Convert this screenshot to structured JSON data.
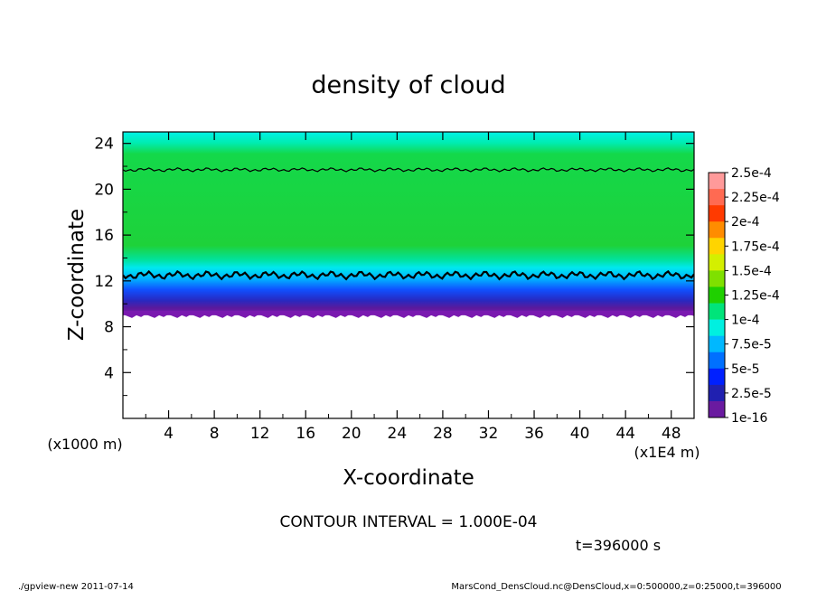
{
  "chart_data": {
    "type": "heatmap",
    "title": "density of cloud",
    "xlabel": "X-coordinate",
    "ylabel": "Z-coordinate",
    "x_ticks": [
      "4",
      "8",
      "12",
      "16",
      "20",
      "24",
      "28",
      "32",
      "36",
      "40",
      "44",
      "48"
    ],
    "y_ticks": [
      "4",
      "8",
      "12",
      "16",
      "20",
      "24"
    ],
    "xlim": [
      0,
      50
    ],
    "ylim": [
      0,
      25
    ],
    "x_unit": "(x1E4 m)",
    "y_unit": "(x1000 m)",
    "colorbar": {
      "labels": [
        "2.5e-4",
        "2.25e-4",
        "2e-4",
        "1.75e-4",
        "1.5e-4",
        "1.25e-4",
        "1e-4",
        "7.5e-5",
        "5e-5",
        "2.5e-5",
        "1e-16"
      ],
      "colors": [
        "#ff9a9a",
        "#ff6a52",
        "#ff3a00",
        "#ff8c00",
        "#ffd400",
        "#d4ef00",
        "#7fe000",
        "#1fd000",
        "#00e47a",
        "#00f0e0",
        "#00b8ff",
        "#0070ff",
        "#0020ff",
        "#2020b0",
        "#6a1aa0"
      ]
    },
    "contour_lines_at": [
      12.5,
      21.7
    ],
    "field": {
      "lower_bound_z": 9,
      "bands": [
        {
          "z_from": 9,
          "z_to": 10,
          "level": "1e-16"
        },
        {
          "z_from": 10,
          "z_to": 11,
          "level": "2.5e-5"
        },
        {
          "z_from": 11,
          "z_to": 12,
          "level": "5e-5"
        },
        {
          "z_from": 12,
          "z_to": 13,
          "level": "7.5e-5"
        },
        {
          "z_from": 13,
          "z_to": 21.5,
          "level": "1e-4"
        },
        {
          "z_from": 21.5,
          "z_to": 25,
          "level": "7.5e-5"
        }
      ]
    }
  },
  "contour_interval": "CONTOUR INTERVAL = 1.000E-04",
  "time_label": "t=396000 s",
  "footer_left": "./gpview-new  2011-07-14",
  "footer_right": "MarsCond_DensCloud.nc@DensCloud,x=0:500000,z=0:25000,t=396000"
}
